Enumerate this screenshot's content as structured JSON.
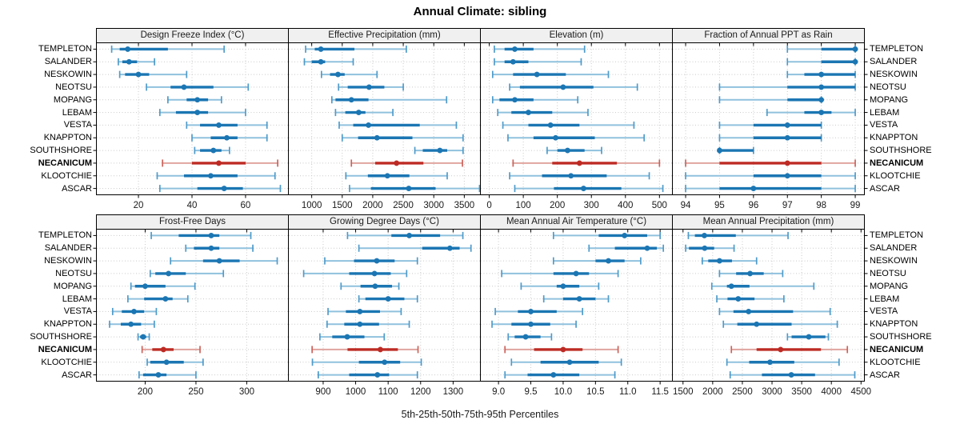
{
  "title": "Annual Climate: sibling",
  "caption": "5th-25th-50th-75th-95th Percentiles",
  "stations": [
    "TEMPLETON",
    "SALANDER",
    "NESKOWIN",
    "NEOTSU",
    "MOPANG",
    "LEBAM",
    "VESTA",
    "KNAPPTON",
    "SOUTHSHORE",
    "NECANICUM",
    "KLOOTCHIE",
    "ASCAR"
  ],
  "highlight_station": "NECANICUM",
  "colors": {
    "blue_dark": "#1b76b3",
    "blue_light": "#90c1dd",
    "blue_cap": "#4f9bca",
    "red_dark": "#bd2b24",
    "red_light": "#e0a49e",
    "red_cap": "#cd625b",
    "grid": "#c9c9c9",
    "border": "#000000",
    "header_bg": "#f0f0f0"
  },
  "chart_data": [
    {
      "type": "percentile-dotplot",
      "title": "Design Freeze Index (°C)",
      "xlim": [
        4.3,
        76
      ],
      "ticks": [
        20,
        40,
        60
      ],
      "tick_labels": [
        "20",
        "40",
        "60"
      ],
      "percentiles": [
        5,
        25,
        50,
        75,
        95
      ],
      "values": [
        [
          10,
          13,
          16,
          31,
          52
        ],
        [
          12.5,
          14,
          16.5,
          19.5,
          26
        ],
        [
          13,
          15,
          20,
          24,
          38
        ],
        [
          23,
          32,
          37,
          48,
          61
        ],
        [
          31,
          38,
          42,
          46,
          51
        ],
        [
          28,
          34,
          42,
          46,
          60
        ],
        [
          38,
          43,
          50,
          57,
          68
        ],
        [
          40,
          47,
          53,
          57,
          68
        ],
        [
          41,
          43,
          48,
          51,
          54
        ],
        [
          29,
          40,
          50,
          60,
          72
        ],
        [
          27,
          37,
          47,
          57,
          71
        ],
        [
          28,
          42,
          52,
          59,
          73
        ]
      ]
    },
    {
      "type": "percentile-dotplot",
      "title": "Effective Precipitation (mm)",
      "xlim": [
        618,
        3764
      ],
      "ticks": [
        1000,
        1500,
        2000,
        2500,
        3000,
        3500
      ],
      "tick_labels": [
        "1000",
        "1500",
        "2000",
        "2500",
        "3000",
        "3500"
      ],
      "percentiles": [
        5,
        25,
        50,
        75,
        95
      ],
      "values": [
        [
          900,
          1050,
          1150,
          1700,
          2550
        ],
        [
          880,
          1000,
          1150,
          1220,
          1680
        ],
        [
          1160,
          1300,
          1430,
          1540,
          2070
        ],
        [
          1440,
          1590,
          1940,
          2190,
          2500
        ],
        [
          1330,
          1390,
          1650,
          1930,
          3210
        ],
        [
          1390,
          1550,
          1770,
          1880,
          2330
        ],
        [
          1450,
          1680,
          1930,
          2770,
          3370
        ],
        [
          1500,
          1760,
          2070,
          2650,
          3480
        ],
        [
          2690,
          2820,
          3100,
          3220,
          3480
        ],
        [
          1650,
          2040,
          2390,
          2830,
          3470
        ],
        [
          1560,
          1920,
          2240,
          2600,
          3220
        ],
        [
          1620,
          1970,
          2590,
          3030,
          3750
        ]
      ]
    },
    {
      "type": "percentile-dotplot",
      "title": "Elevation (m)",
      "xlim": [
        -26,
        538
      ],
      "ticks": [
        0,
        100,
        200,
        300,
        400,
        500
      ],
      "tick_labels": [
        "0",
        "100",
        "200",
        "300",
        "400",
        "500"
      ],
      "percentiles": [
        5,
        25,
        50,
        75,
        95
      ],
      "values": [
        [
          15,
          45,
          75,
          130,
          280
        ],
        [
          15,
          45,
          70,
          115,
          270
        ],
        [
          10,
          70,
          140,
          225,
          350
        ],
        [
          60,
          90,
          217,
          306,
          435
        ],
        [
          10,
          30,
          75,
          130,
          260
        ],
        [
          25,
          65,
          115,
          185,
          290
        ],
        [
          40,
          115,
          180,
          265,
          425
        ],
        [
          55,
          130,
          195,
          310,
          455
        ],
        [
          170,
          200,
          230,
          280,
          330
        ],
        [
          70,
          185,
          265,
          375,
          500
        ],
        [
          60,
          155,
          240,
          345,
          470
        ],
        [
          75,
          190,
          277,
          388,
          510
        ]
      ]
    },
    {
      "type": "percentile-dotplot",
      "title": "Fraction of Annual PPT as Rain",
      "xlim": [
        93.61,
        99.27
      ],
      "ticks": [
        94,
        95,
        96,
        97,
        98,
        99
      ],
      "tick_labels": [
        "94",
        "95",
        "96",
        "97",
        "98",
        "99"
      ],
      "percentiles": [
        5,
        25,
        50,
        75,
        95
      ],
      "values": [
        [
          97,
          98,
          99,
          99,
          99
        ],
        [
          97,
          98,
          99,
          99,
          99
        ],
        [
          97,
          97.5,
          98,
          99,
          99
        ],
        [
          95,
          97,
          98,
          99,
          99
        ],
        [
          95,
          97,
          98,
          98,
          98
        ],
        [
          96.4,
          97.5,
          98,
          98.3,
          99
        ],
        [
          95,
          96,
          97,
          98,
          98
        ],
        [
          95,
          96,
          97,
          98,
          98
        ],
        [
          95,
          95,
          95,
          96,
          96
        ],
        [
          94,
          95,
          97,
          98,
          99
        ],
        [
          94,
          96,
          97,
          98,
          99
        ],
        [
          94,
          95,
          96,
          98,
          99
        ]
      ]
    },
    {
      "type": "percentile-dotplot",
      "title": "Frost-Free Days",
      "xlim": [
        152,
        341
      ],
      "ticks": [
        200,
        250,
        300
      ],
      "tick_labels": [
        "200",
        "250",
        "300"
      ],
      "percentiles": [
        5,
        25,
        50,
        75,
        95
      ],
      "values": [
        [
          206,
          233,
          265,
          273,
          304
        ],
        [
          240,
          248,
          265,
          273,
          306
        ],
        [
          225,
          257,
          273,
          293,
          330
        ],
        [
          205,
          210,
          223,
          240,
          277
        ],
        [
          186,
          190,
          200,
          220,
          249
        ],
        [
          183,
          199,
          220,
          227,
          242
        ],
        [
          168,
          177,
          189,
          199,
          211
        ],
        [
          165,
          176,
          186,
          196,
          209
        ],
        [
          193,
          195,
          198,
          201,
          204
        ],
        [
          197,
          207,
          218,
          228,
          254
        ],
        [
          202,
          205,
          221,
          238,
          257
        ],
        [
          194,
          198,
          213,
          221,
          250
        ]
      ]
    },
    {
      "type": "percentile-dotplot",
      "title": "Growing Degree Days (°C)",
      "xlim": [
        793,
        1384
      ],
      "ticks": [
        900,
        1000,
        1100,
        1200,
        1300
      ],
      "tick_labels": [
        "900",
        "1000",
        "1100",
        "1200",
        "1300"
      ],
      "percentiles": [
        5,
        25,
        50,
        75,
        95
      ],
      "values": [
        [
          975,
          1110,
          1165,
          1260,
          1330
        ],
        [
          1010,
          1205,
          1290,
          1320,
          1355
        ],
        [
          905,
          995,
          1065,
          1120,
          1190
        ],
        [
          840,
          980,
          1058,
          1108,
          1157
        ],
        [
          955,
          1015,
          1060,
          1112,
          1133
        ],
        [
          1010,
          1030,
          1100,
          1150,
          1190
        ],
        [
          915,
          970,
          1013,
          1075,
          1140
        ],
        [
          912,
          965,
          1013,
          1072,
          1165
        ],
        [
          890,
          928,
          974,
          1027,
          1088
        ],
        [
          866,
          975,
          1076,
          1130,
          1192
        ],
        [
          867,
          1010,
          1089,
          1137,
          1202
        ],
        [
          885,
          980,
          1067,
          1103,
          1190
        ]
      ]
    },
    {
      "type": "percentile-dotplot",
      "title": "Mean Annual Air Temperature (°C)",
      "xlim": [
        8.72,
        11.69
      ],
      "ticks": [
        9.0,
        9.5,
        10.0,
        10.5,
        11.0,
        11.5
      ],
      "tick_labels": [
        "9.0",
        "9.5",
        "10.0",
        "10.5",
        "11.0",
        "11.5"
      ],
      "percentiles": [
        5,
        25,
        50,
        75,
        95
      ],
      "values": [
        [
          9.85,
          10.55,
          10.95,
          11.3,
          11.5
        ],
        [
          10.4,
          10.8,
          11.3,
          11.45,
          11.55
        ],
        [
          9.85,
          10.5,
          10.7,
          10.95,
          11.2
        ],
        [
          9.05,
          9.85,
          10.2,
          10.4,
          10.85
        ],
        [
          9.35,
          9.9,
          10.0,
          10.25,
          10.55
        ],
        [
          9.7,
          10.0,
          10.25,
          10.5,
          10.7
        ],
        [
          8.95,
          9.3,
          9.5,
          9.9,
          10.3
        ],
        [
          8.9,
          9.2,
          9.5,
          9.8,
          10.2
        ],
        [
          9.15,
          9.25,
          9.42,
          9.65,
          9.82
        ],
        [
          9.1,
          9.55,
          10.0,
          10.3,
          10.85
        ],
        [
          9.2,
          9.65,
          10.1,
          10.55,
          10.9
        ],
        [
          9.1,
          9.45,
          9.85,
          10.25,
          10.8
        ]
      ]
    },
    {
      "type": "percentile-dotplot",
      "title": "Mean Annual Precipitation (mm)",
      "xlim": [
        1321,
        4557
      ],
      "ticks": [
        1500,
        2000,
        2500,
        3000,
        3500,
        4000,
        4500
      ],
      "tick_labels": [
        "1500",
        "2000",
        "2500",
        "3000",
        "3500",
        "4000",
        "4500"
      ],
      "percentiles": [
        5,
        25,
        50,
        75,
        95
      ],
      "values": [
        [
          1590,
          1700,
          1860,
          2390,
          3270
        ],
        [
          1545,
          1600,
          1865,
          2025,
          2360
        ],
        [
          1825,
          1925,
          2115,
          2325,
          2740
        ],
        [
          2115,
          2395,
          2630,
          2860,
          3180
        ],
        [
          1985,
          2240,
          2315,
          2620,
          3705
        ],
        [
          2070,
          2250,
          2430,
          2705,
          3200
        ],
        [
          2115,
          2350,
          2605,
          3355,
          3980
        ],
        [
          2180,
          2415,
          2740,
          3330,
          4100
        ],
        [
          3260,
          3330,
          3620,
          3900,
          3950
        ],
        [
          2315,
          2740,
          3145,
          3825,
          4270
        ],
        [
          2240,
          2615,
          2965,
          3375,
          4130
        ],
        [
          2295,
          2830,
          3325,
          3725,
          4395
        ]
      ]
    }
  ]
}
